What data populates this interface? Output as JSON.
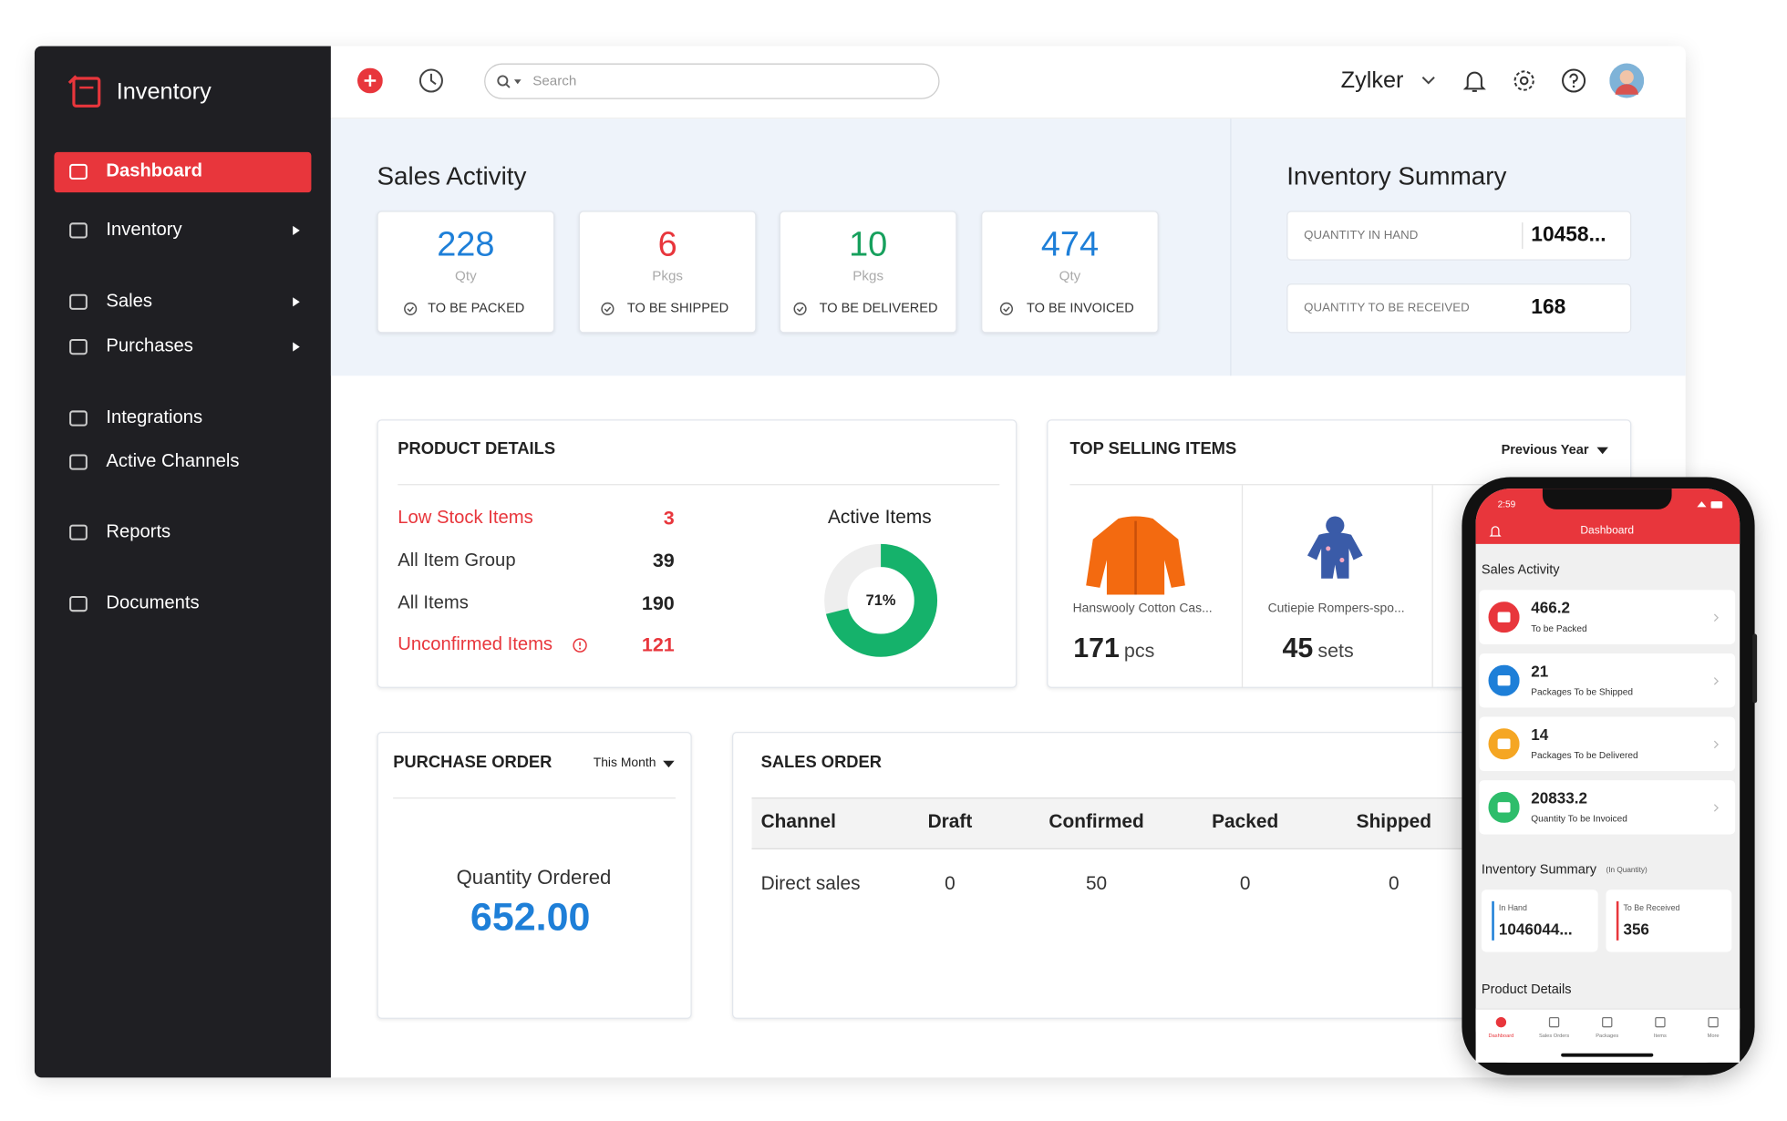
{
  "sidebar": {
    "brand": "Inventory",
    "items": [
      "Dashboard",
      "Inventory",
      "Sales",
      "Purchases",
      "Integrations",
      "Active Channels",
      "Reports",
      "Documents"
    ]
  },
  "topbar": {
    "search_placeholder": "Search",
    "org": "Zylker"
  },
  "sales_activity": {
    "title": "Sales Activity",
    "cards": [
      {
        "value": "228",
        "unit": "Qty",
        "label": "TO BE PACKED"
      },
      {
        "value": "6",
        "unit": "Pkgs",
        "label": "TO BE SHIPPED"
      },
      {
        "value": "10",
        "unit": "Pkgs",
        "label": "TO BE DELIVERED"
      },
      {
        "value": "474",
        "unit": "Qty",
        "label": "TO BE INVOICED"
      }
    ]
  },
  "inventory_summary": {
    "title": "Inventory Summary",
    "rows": [
      {
        "label": "QUANTITY IN HAND",
        "value": "10458..."
      },
      {
        "label": "QUANTITY TO BE RECEIVED",
        "value": "168"
      }
    ]
  },
  "product_details": {
    "title": "PRODUCT DETAILS",
    "rows": [
      {
        "label": "Low Stock Items",
        "value": "3"
      },
      {
        "label": "All Item Group",
        "value": "39"
      },
      {
        "label": "All Items",
        "value": "190"
      },
      {
        "label": "Unconfirmed Items",
        "value": "121"
      }
    ],
    "active_items": {
      "title": "Active Items",
      "percent": {
        "value": 71,
        "label": "71%"
      }
    }
  },
  "top_selling": {
    "title": "TOP SELLING ITEMS",
    "filter": "Previous Year",
    "items": [
      {
        "name": "Hanswooly Cotton Cas...",
        "qty": "171",
        "unit": "pcs"
      },
      {
        "name": "Cutiepie Rompers-spo...",
        "qty": "45",
        "unit": "sets"
      }
    ]
  },
  "purchase_order": {
    "title": "PURCHASE ORDER",
    "filter": "This Month",
    "label": "Quantity Ordered",
    "value": "652.00"
  },
  "sales_order": {
    "title": "SALES ORDER",
    "columns": [
      "Channel",
      "Draft",
      "Confirmed",
      "Packed",
      "Shipped"
    ],
    "rows": [
      [
        "Direct sales",
        "0",
        "50",
        "0",
        "0"
      ]
    ]
  },
  "phone": {
    "time": "2:59",
    "header": "Dashboard",
    "sales_activity_title": "Sales Activity",
    "items": [
      {
        "value": "466.2",
        "label": "To be Packed"
      },
      {
        "value": "21",
        "label": "Packages To be Shipped"
      },
      {
        "value": "14",
        "label": "Packages To be Delivered"
      },
      {
        "value": "20833.2",
        "label": "Quantity To be Invoiced"
      }
    ],
    "inventory_summary_title": "Inventory Summary",
    "inventory_summary_note": "(In Quantity)",
    "in_hand": {
      "label": "In Hand",
      "value": "1046044..."
    },
    "to_be_received": {
      "label": "To Be Received",
      "value": "356"
    },
    "product_details_title": "Product Details",
    "tabs": [
      "Dashboard",
      "Sales Orders",
      "Packages",
      "Items",
      "More"
    ]
  }
}
